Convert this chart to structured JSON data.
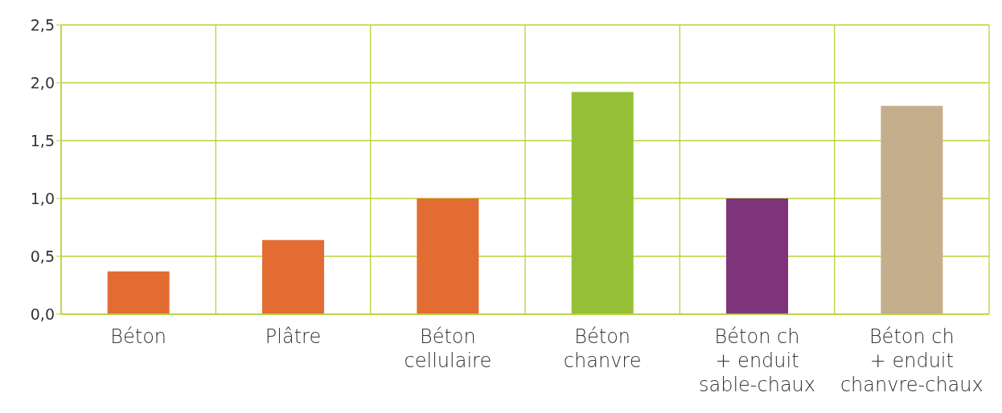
{
  "chart_data": {
    "type": "bar",
    "categories": [
      "Béton",
      "Plâtre",
      "Béton\ncellulaire",
      "Béton\nchanvre",
      "Béton ch\n+ enduit\nsable-chaux",
      "Béton ch\n+ enduit\nchanvre-chaux"
    ],
    "values": [
      0.37,
      0.64,
      1.0,
      1.92,
      1.0,
      1.8
    ],
    "colors": [
      "#e36c33",
      "#e36c33",
      "#e36c33",
      "#95c036",
      "#7e347a",
      "#c4ae8c"
    ],
    "ylim": [
      0,
      2.5
    ],
    "yticks": [
      {
        "value": 0,
        "label": "0,0"
      },
      {
        "value": 0.5,
        "label": "0,5"
      },
      {
        "value": 1,
        "label": "1,0"
      },
      {
        "value": 1.5,
        "label": "1,5"
      },
      {
        "value": 2,
        "label": "2,0"
      },
      {
        "value": 2.5,
        "label": "2,5"
      }
    ],
    "grid": true
  }
}
